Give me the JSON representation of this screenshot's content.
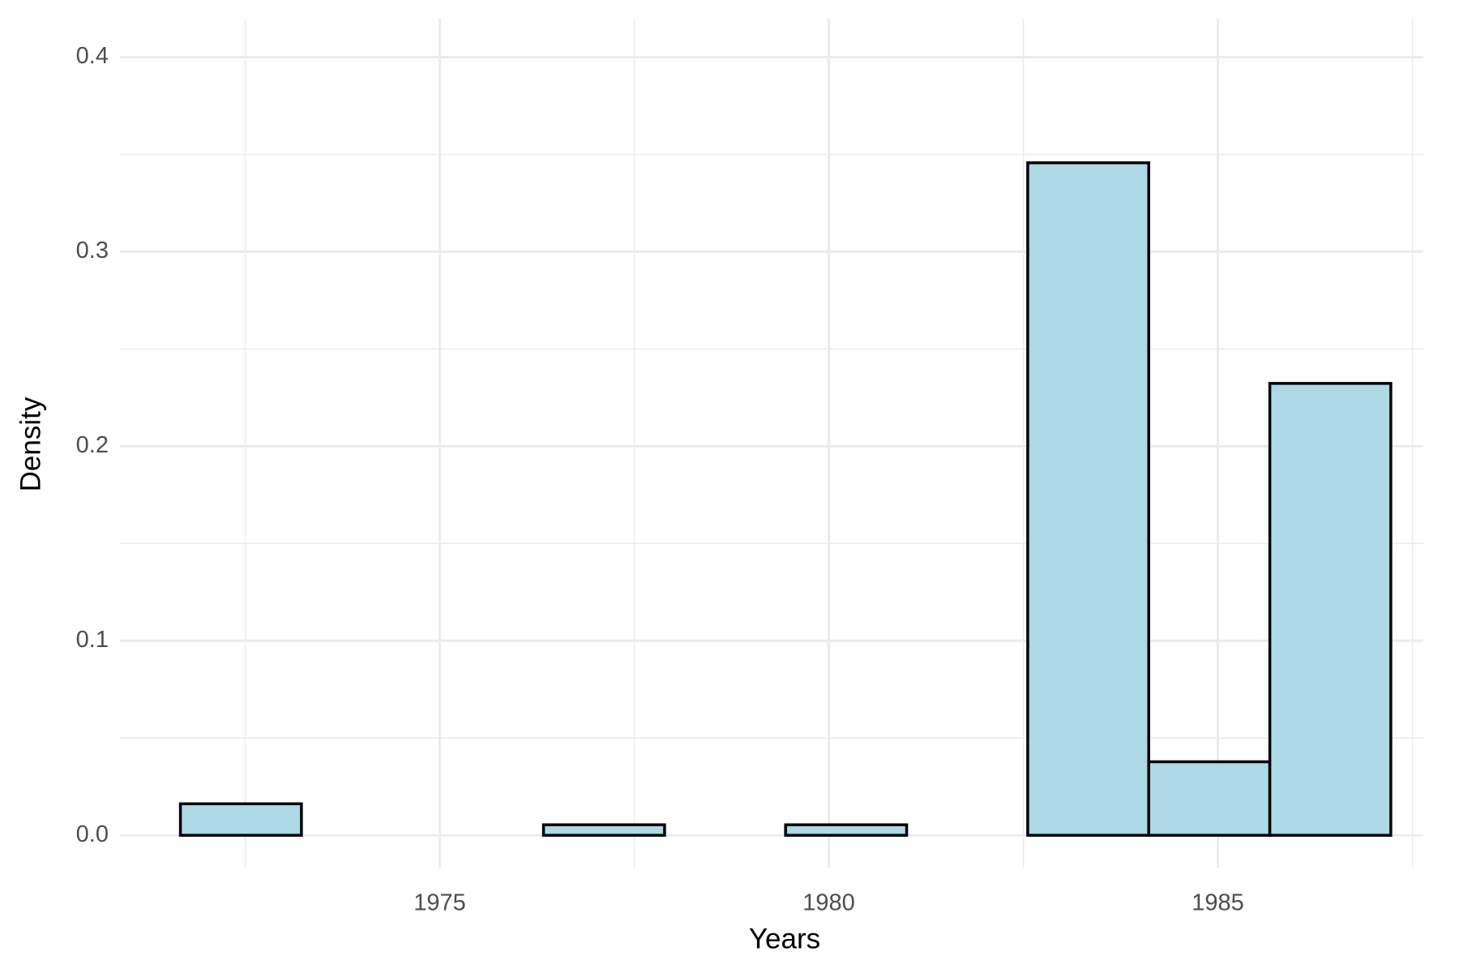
{
  "chart_data": {
    "type": "histogram",
    "x_label": "Years",
    "y_label": "Density",
    "bins": [
      1971.667,
      1973.222,
      1974.778,
      1976.333,
      1977.889,
      1979.444,
      1981.0,
      1982.556,
      1984.111,
      1985.667,
      1987.222
    ],
    "values": [
      0.0162,
      0,
      0,
      0.0054,
      0,
      0.0054,
      0,
      0.3457,
      0.0378,
      0.2323
    ],
    "color": "#add8e6",
    "edge_color": "#000000",
    "xlim": [
      1970.89,
      1987.64
    ],
    "xticks": [
      1975,
      1980,
      1985
    ],
    "xminor_ticks": [
      1972.5,
      1977.5,
      1982.5,
      1987.5
    ],
    "ylim": [
      -0.0166,
      0.4198
    ],
    "yticks": [
      {
        "value": 0,
        "label": "0.0"
      },
      0.1,
      0.2,
      0.3,
      0.4
    ],
    "yminor_ticks": [
      0.05,
      0.15,
      0.25,
      0.35
    ],
    "grid": true
  }
}
